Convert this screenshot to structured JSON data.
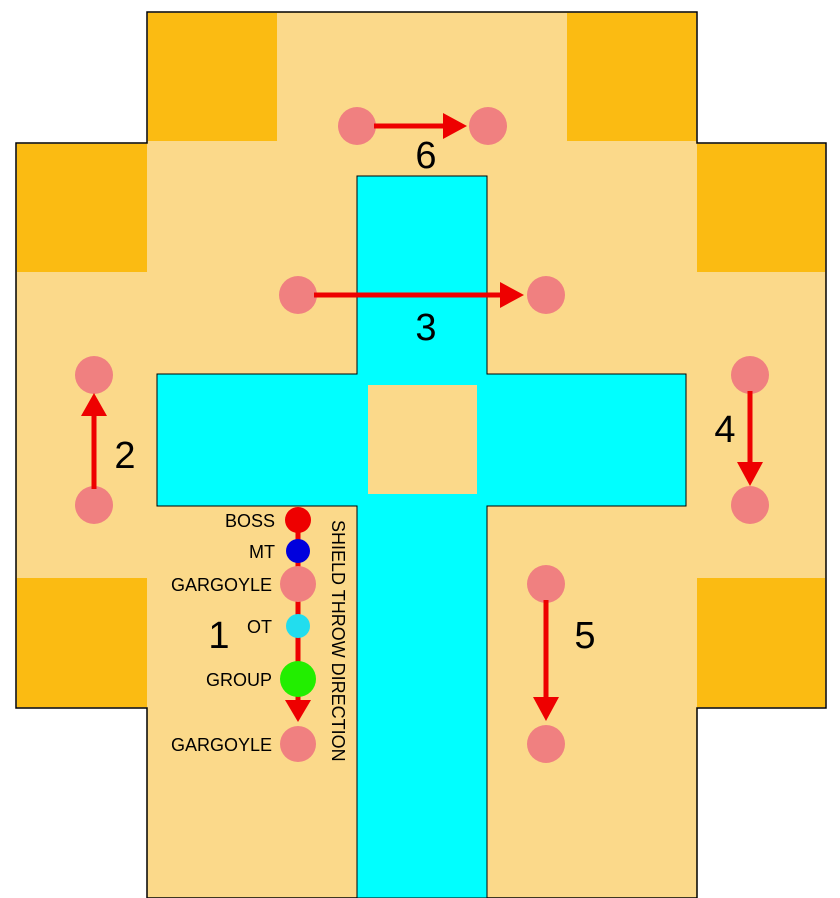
{
  "colors": {
    "floor": "#fbd98a",
    "corner": "#fbbb12",
    "water": "#00ffff",
    "gargoyle": "#f08080",
    "arrow": "#ee0000",
    "boss": "#ee0000",
    "mt": "#0000dd",
    "ot": "#22ddee",
    "group": "#22ee00"
  },
  "legend": {
    "boss": "BOSS",
    "mt": "MT",
    "gargoyle_top": "GARGOYLE",
    "ot": "OT",
    "group": "GROUP",
    "gargoyle_bottom": "GARGOYLE",
    "shield_throw": "SHIELD THROW DIRECTION"
  },
  "positions": {
    "p1": "1",
    "p2": "2",
    "p3": "3",
    "p4": "4",
    "p5": "5",
    "p6": "6"
  }
}
